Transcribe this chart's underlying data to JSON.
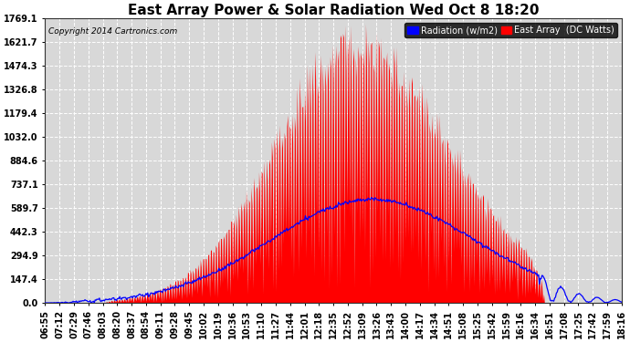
{
  "title": "East Array Power & Solar Radiation Wed Oct 8 18:20",
  "copyright": "Copyright 2014 Cartronics.com",
  "legend_radiation": "Radiation (w/m2)",
  "legend_east_array": "East Array  (DC Watts)",
  "ylabel_values": [
    0.0,
    147.4,
    294.9,
    442.3,
    589.7,
    737.1,
    884.6,
    1032.0,
    1179.4,
    1326.8,
    1474.3,
    1621.7,
    1769.1
  ],
  "ymax": 1769.1,
  "ymin": 0.0,
  "bg_color": "#ffffff",
  "plot_bg_color": "#d8d8d8",
  "grid_color": "#ffffff",
  "red_fill_color": "#ff0000",
  "blue_line_color": "#0000ff",
  "title_fontsize": 11,
  "tick_fontsize": 7,
  "x_tick_labels": [
    "06:55",
    "07:12",
    "07:29",
    "07:46",
    "08:03",
    "08:20",
    "08:37",
    "08:54",
    "09:11",
    "09:28",
    "09:45",
    "10:02",
    "10:19",
    "10:36",
    "10:53",
    "11:10",
    "11:27",
    "11:44",
    "12:01",
    "12:18",
    "12:35",
    "12:52",
    "13:09",
    "13:26",
    "13:43",
    "14:00",
    "14:17",
    "14:34",
    "14:51",
    "15:08",
    "15:25",
    "15:42",
    "15:59",
    "16:16",
    "16:34",
    "16:51",
    "17:08",
    "17:25",
    "17:42",
    "17:59",
    "18:16"
  ]
}
